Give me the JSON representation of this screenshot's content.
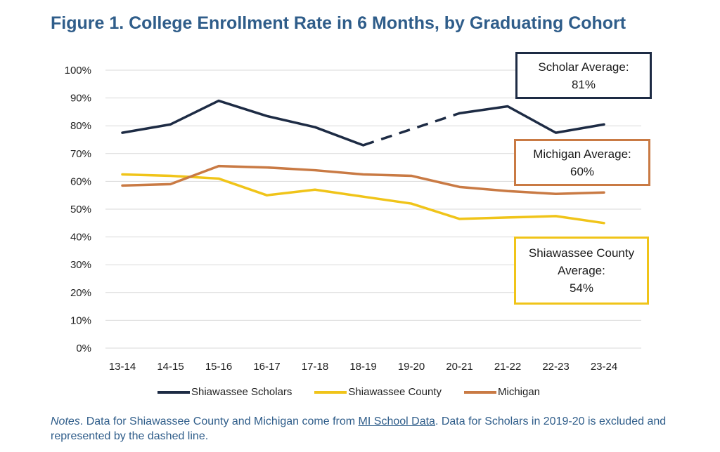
{
  "title": "Figure 1. College Enrollment Rate in 6 Months, by Graduating Cohort",
  "notes": {
    "lead": "Notes",
    "text1": ". Data for Shiawassee County and Michigan come from ",
    "link": "MI School Data",
    "text2": ". Data for Scholars in 2019-20 is excluded and represented by the dashed line."
  },
  "callouts": {
    "scholar": {
      "line1": "Scholar Average:",
      "line2": "81%"
    },
    "michigan": {
      "line1": "Michigan Average:",
      "line2": "60%"
    },
    "county": {
      "line1": "Shiawassee County",
      "line2": "Average:",
      "line3": "54%"
    }
  },
  "colors": {
    "scholars": "#1d2b44",
    "county": "#f0c419",
    "michigan": "#c97a44",
    "grid": "#d9d9d9",
    "title": "#2f5d8a"
  },
  "chart_data": {
    "type": "line",
    "title": "Figure 1. College Enrollment Rate in 6 Months, by Graduating Cohort",
    "categories": [
      "13-14",
      "14-15",
      "15-16",
      "16-17",
      "17-18",
      "18-19",
      "19-20",
      "20-21",
      "21-22",
      "22-23",
      "23-24"
    ],
    "ylim": [
      0,
      100
    ],
    "yticks": [
      "0%",
      "10%",
      "20%",
      "30%",
      "40%",
      "50%",
      "60%",
      "70%",
      "80%",
      "90%",
      "100%"
    ],
    "grid": true,
    "legend_position": "bottom",
    "series": [
      {
        "name": "Shiawassee Scholars",
        "values": [
          77.5,
          80.5,
          89,
          83.5,
          79.5,
          73,
          null,
          84.5,
          87,
          77.5,
          80.5
        ],
        "dashed_gap": true
      },
      {
        "name": "Shiawassee County",
        "values": [
          62.5,
          62,
          61,
          55,
          57,
          54.5,
          52,
          46.5,
          47,
          47.5,
          45
        ]
      },
      {
        "name": "Michigan",
        "values": [
          58.5,
          59,
          65.5,
          65,
          64,
          62.5,
          62,
          58,
          56.5,
          55.5,
          56
        ]
      }
    ]
  }
}
